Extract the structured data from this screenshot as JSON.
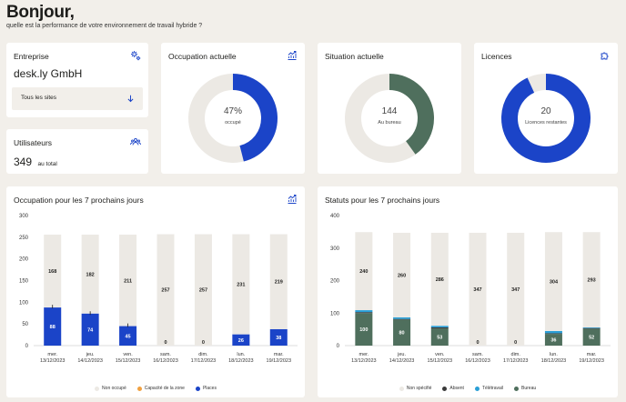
{
  "header": {
    "title": "Bonjour,",
    "subtitle": "quelle est la performance de votre environnement de travail hybride ?"
  },
  "entreprise": {
    "title": "Entreprise",
    "name": "desk.ly GmbH",
    "site_select": "Tous les sites"
  },
  "utilisateurs": {
    "title": "Utilisateurs",
    "count": "349",
    "suffix": "au total"
  },
  "occupation": {
    "title": "Occupation actuelle",
    "value": "47%",
    "label": "occupé",
    "fraction": 0.47
  },
  "situation": {
    "title": "Situation actuelle",
    "value": "144",
    "label": "Au bureau",
    "fraction": 0.41
  },
  "licences": {
    "title": "Licences",
    "value": "20",
    "label": "Licences restantes",
    "fraction": 0.94
  },
  "colors": {
    "blue": "#1b44c8",
    "green": "#4f6f5d",
    "grey": "#ece9e4",
    "orange": "#f0a040",
    "dark": "#3a3a3a",
    "cyan": "#2a9fd6",
    "capacity": "#1d1d1b"
  },
  "chart_data": [
    {
      "type": "bar",
      "title": "Occupation pour les 7 prochains jours",
      "categories": [
        [
          "mer.",
          "13/12/2023"
        ],
        [
          "jeu.",
          "14/12/2023"
        ],
        [
          "ven.",
          "15/12/2023"
        ],
        [
          "sam.",
          "16/12/2023"
        ],
        [
          "dim.",
          "17/12/2023"
        ],
        [
          "lun.",
          "18/12/2023"
        ],
        [
          "mar.",
          "19/12/2023"
        ]
      ],
      "ylim": [
        0,
        300
      ],
      "yticks": [
        0,
        50,
        100,
        150,
        200,
        250,
        300
      ],
      "series": [
        {
          "name": "Places",
          "color": "#1b44c8",
          "values": [
            88,
            74,
            45,
            0,
            0,
            26,
            38
          ]
        },
        {
          "name": "Non occupé",
          "color": "#ece9e4",
          "values": [
            168,
            182,
            211,
            257,
            257,
            231,
            219
          ]
        }
      ],
      "capacity": [
        90,
        75,
        47,
        0,
        0,
        0,
        0
      ],
      "labels": {
        "Places": [
          "88",
          "74",
          "45",
          "0",
          "0",
          "26",
          "38"
        ],
        "Non occupé": [
          "168",
          "182",
          "211",
          "257",
          "257",
          "231",
          "219"
        ]
      },
      "legend": [
        {
          "name": "Non occupé",
          "color": "#ece9e4"
        },
        {
          "name": "Capacité de la zone",
          "color": "#f0a040"
        },
        {
          "name": "Places",
          "color": "#1b44c8"
        }
      ]
    },
    {
      "type": "bar",
      "title": "Statuts pour les 7 prochains jours",
      "categories": [
        [
          "mer.",
          "13/12/2023"
        ],
        [
          "jeu.",
          "14/12/2023"
        ],
        [
          "ven.",
          "15/12/2023"
        ],
        [
          "sam.",
          "16/12/2023"
        ],
        [
          "dim.",
          "17/12/2023"
        ],
        [
          "lun.",
          "18/12/2023"
        ],
        [
          "mar.",
          "19/12/2023"
        ]
      ],
      "ylim": [
        0,
        400
      ],
      "yticks": [
        0,
        100,
        200,
        300,
        400
      ],
      "series": [
        {
          "name": "Bureau",
          "color": "#4f6f5d",
          "values": [
            100,
            80,
            53,
            0,
            0,
            36,
            52
          ]
        },
        {
          "name": "Absent",
          "color": "#3a3a3a",
          "values": [
            3,
            2,
            3,
            0,
            0,
            2,
            2
          ]
        },
        {
          "name": "Télétravail",
          "color": "#2a9fd6",
          "values": [
            6,
            5,
            5,
            0,
            0,
            7,
            2
          ]
        },
        {
          "name": "Non spécifié",
          "color": "#ece9e4",
          "values": [
            240,
            260,
            286,
            347,
            347,
            304,
            293
          ]
        }
      ],
      "labels": {
        "Bureau": [
          "100",
          "80",
          "53",
          "0",
          "0",
          "36",
          "52"
        ],
        "Non spécifié": [
          "240",
          "260",
          "286",
          "347",
          "347",
          "304",
          "293"
        ]
      },
      "legend": [
        {
          "name": "Non spécifié",
          "color": "#ece9e4"
        },
        {
          "name": "Absent",
          "color": "#3a3a3a"
        },
        {
          "name": "Télétravail",
          "color": "#2a9fd6"
        },
        {
          "name": "Bureau",
          "color": "#4f6f5d"
        }
      ]
    }
  ]
}
